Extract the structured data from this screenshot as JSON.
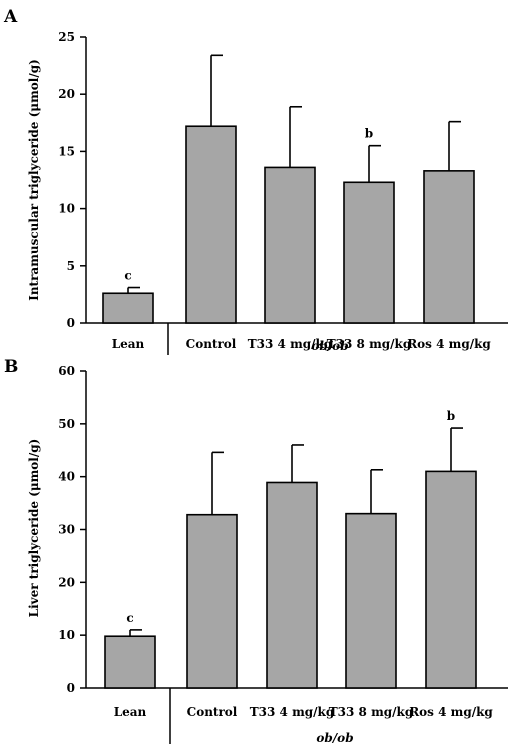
{
  "chart_data": [
    {
      "panel": "A",
      "type": "bar",
      "categories": [
        "Lean",
        "Control",
        "T33 4 mg/kg",
        "T33 8 mg/kg",
        "Ros 4 mg/kg"
      ],
      "values": [
        2.6,
        17.2,
        13.6,
        12.3,
        13.3
      ],
      "errors": [
        0.5,
        6.2,
        5.3,
        3.2,
        4.3
      ],
      "significance": [
        "c",
        "",
        "",
        "b",
        ""
      ],
      "ylabel": "Intramuscular triglyceride (μmol/g)",
      "ylim": [
        0,
        25
      ],
      "yticks": [
        0,
        5,
        10,
        15,
        20,
        25
      ],
      "group_label": "ob/ob",
      "bar_color": "#a6a6a6"
    },
    {
      "panel": "B",
      "type": "bar",
      "categories": [
        "Lean",
        "Control",
        "T33 4 mg/kg",
        "T33 8 mg/kg",
        "Ros 4 mg/kg"
      ],
      "values": [
        9.8,
        32.8,
        38.9,
        33.0,
        41.0
      ],
      "errors": [
        1.2,
        11.8,
        7.1,
        8.3,
        8.2
      ],
      "significance": [
        "c",
        "",
        "",
        "",
        "b"
      ],
      "ylabel": "Liver triglyceride (μmol/g)",
      "ylim": [
        0,
        60
      ],
      "yticks": [
        0,
        10,
        20,
        30,
        40,
        50,
        60
      ],
      "group_label": "ob/ob",
      "bar_color": "#a6a6a6"
    }
  ]
}
